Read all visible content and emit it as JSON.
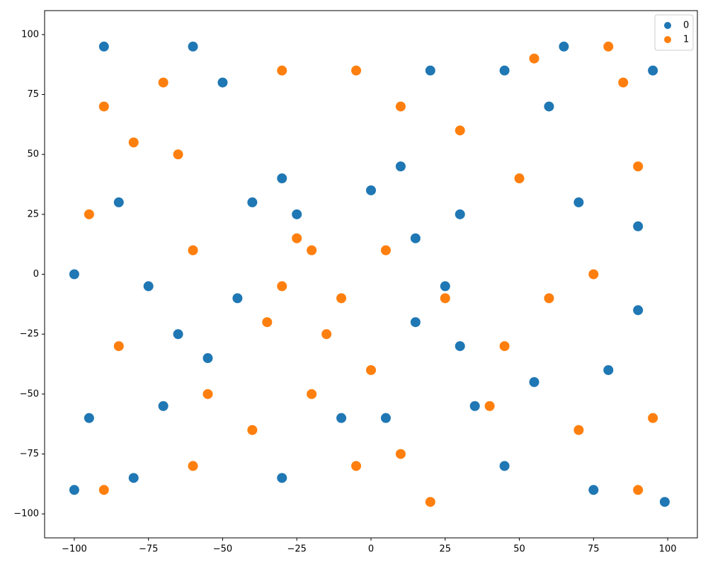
{
  "chart_data": {
    "type": "scatter",
    "xlim": [
      -110,
      110
    ],
    "ylim": [
      -110,
      110
    ],
    "xticks": [
      {
        "value": -100,
        "label": "−100"
      },
      {
        "value": -75,
        "label": "−75"
      },
      {
        "value": -50,
        "label": "−50"
      },
      {
        "value": -25,
        "label": "−25"
      },
      0,
      25,
      50,
      75,
      100
    ],
    "yticks": [
      {
        "value": -100,
        "label": "−100"
      },
      {
        "value": -75,
        "label": "−75"
      },
      {
        "value": -50,
        "label": "−50"
      },
      {
        "value": -25,
        "label": "−25"
      },
      0,
      25,
      50,
      75,
      100
    ],
    "legend": "upper right",
    "series": [
      {
        "name": "0",
        "color": "#1f77b4",
        "x": [
          10,
          0,
          15,
          30,
          25,
          15,
          -40,
          -30,
          -25,
          45,
          20,
          65,
          95,
          60,
          -50,
          -90,
          -85,
          -75,
          -65,
          -55,
          -45,
          -95,
          -80,
          -70,
          -30,
          -10,
          5,
          45,
          30,
          55,
          80,
          90,
          75,
          99,
          -100,
          -100,
          -60,
          90,
          70,
          35
        ],
        "values": [
          45,
          35,
          15,
          25,
          -5,
          -20,
          30,
          40,
          25,
          85,
          85,
          95,
          85,
          70,
          80,
          95,
          30,
          -5,
          -25,
          -35,
          -10,
          -60,
          -85,
          -55,
          -85,
          -60,
          -60,
          -80,
          -30,
          -45,
          -40,
          -15,
          -90,
          -95,
          -90,
          0,
          95,
          20,
          30,
          -55
        ]
      },
      {
        "name": "1",
        "color": "#ff7f0e",
        "x": [
          -30,
          -20,
          -10,
          -35,
          -15,
          -25,
          -70,
          -65,
          -80,
          -30,
          80,
          85,
          90,
          75,
          60,
          45,
          40,
          70,
          10,
          -5,
          20,
          -40,
          -60,
          -90,
          -85,
          -95,
          -60,
          -90,
          -55,
          30,
          10,
          50,
          95,
          90,
          -20,
          0,
          25,
          5,
          -5,
          55
        ],
        "values": [
          -5,
          10,
          -10,
          -20,
          -25,
          15,
          80,
          50,
          55,
          85,
          95,
          80,
          45,
          0,
          -10,
          -30,
          -55,
          -65,
          -75,
          -80,
          -95,
          -65,
          -80,
          -90,
          -30,
          25,
          10,
          70,
          -50,
          60,
          70,
          40,
          -60,
          -90,
          -50,
          -40,
          -10,
          10,
          85,
          90
        ]
      }
    ]
  }
}
